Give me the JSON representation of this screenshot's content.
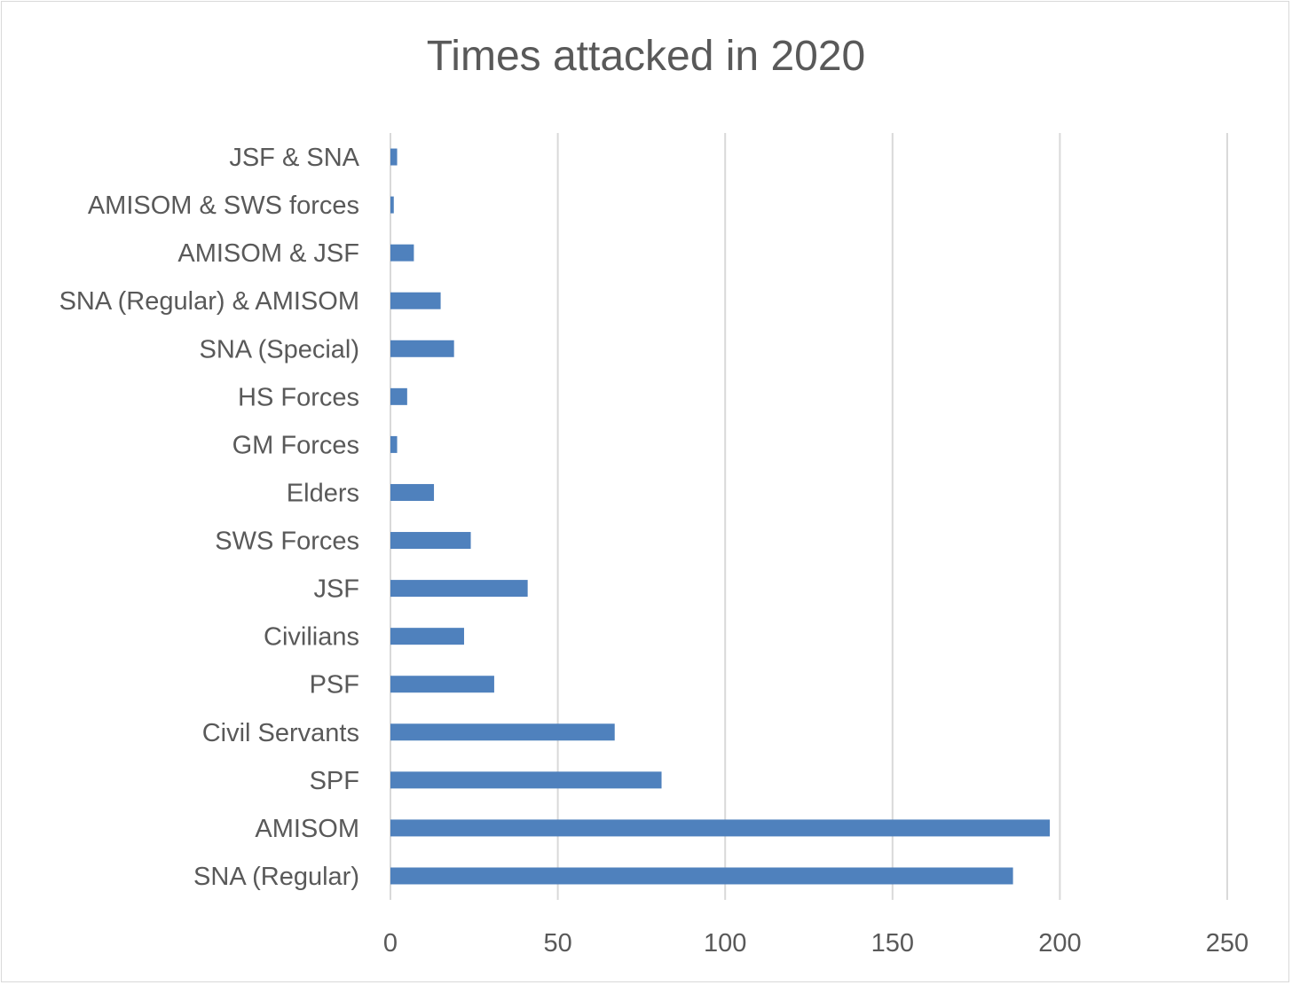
{
  "chart_data": {
    "type": "bar",
    "orientation": "horizontal",
    "title": "Times attacked in 2020",
    "xlabel": "",
    "ylabel": "",
    "categories": [
      "SNA (Regular)",
      "AMISOM",
      "SPF",
      "Civil Servants",
      "PSF",
      "Civilians",
      "JSF",
      "SWS Forces",
      "Elders",
      "GM Forces",
      "HS Forces",
      "SNA (Special)",
      "SNA (Regular) & AMISOM",
      "AMISOM & JSF",
      "AMISOM & SWS forces",
      "JSF & SNA"
    ],
    "values": [
      186,
      197,
      81,
      67,
      31,
      22,
      41,
      24,
      13,
      2,
      5,
      19,
      15,
      7,
      1,
      2
    ],
    "xlim": [
      0,
      250
    ],
    "xticks": [
      0,
      50,
      100,
      150,
      200,
      250
    ],
    "grid": true,
    "legend": "none",
    "bar_color": "#4f81bd",
    "grid_color": "#d9d9d9",
    "text_color": "#595959"
  }
}
